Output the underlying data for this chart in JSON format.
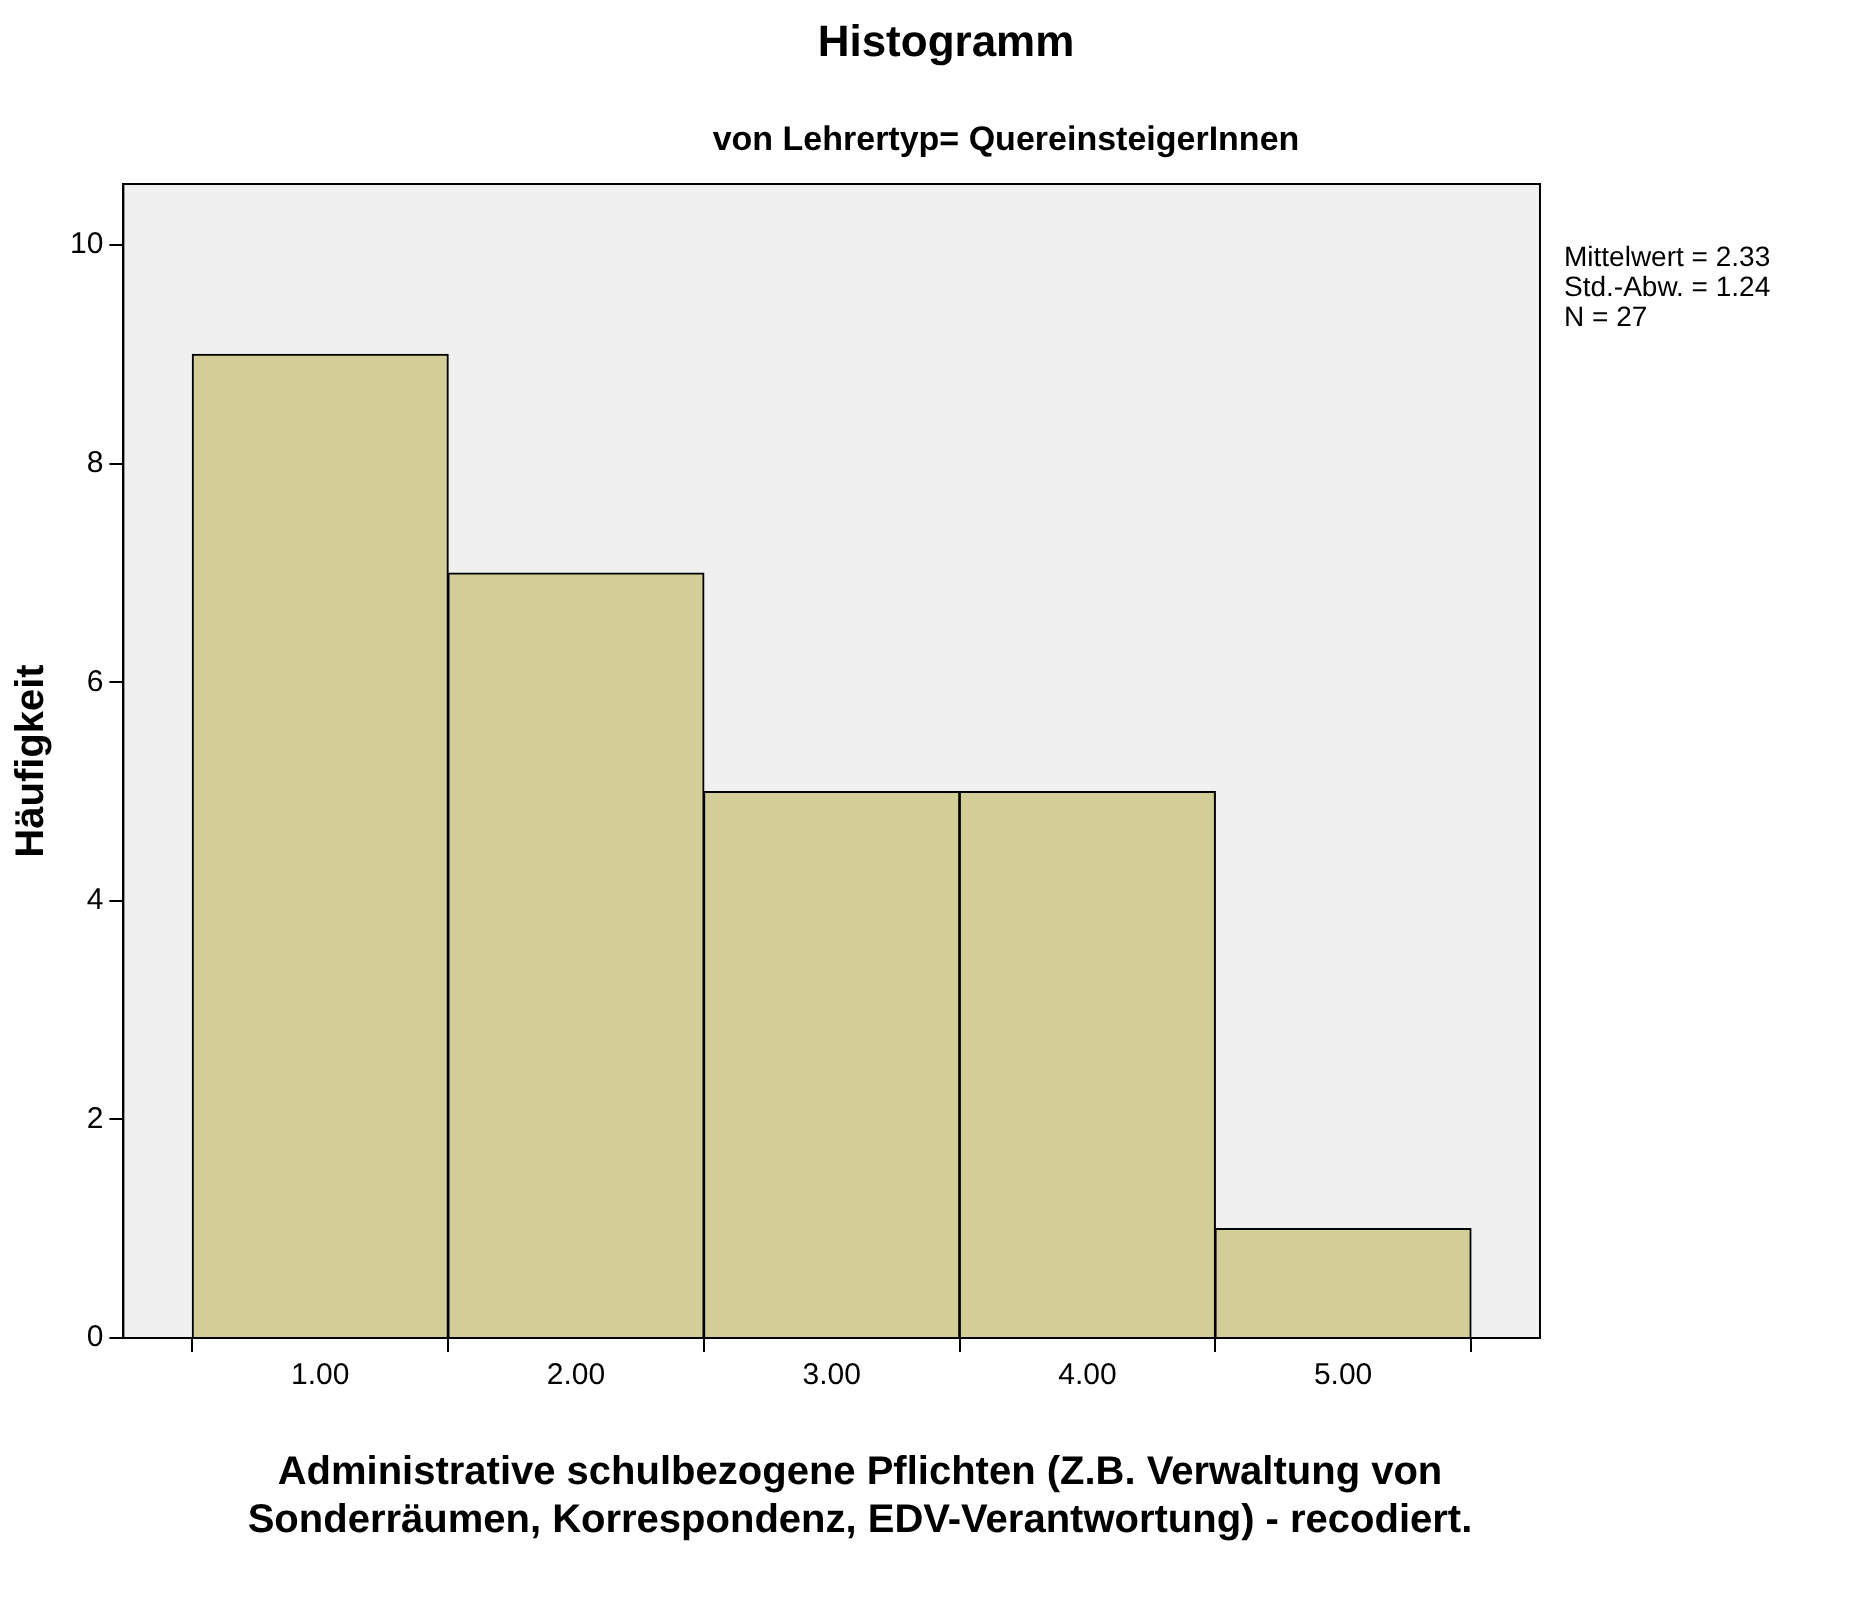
{
  "chart_data": {
    "type": "histogram",
    "title": "Histogramm",
    "subtitle": "von Lehrertyp= QuereinsteigerInnen",
    "xlabel": "Administrative schulbezogene Pflichten (Z.B. Verwaltung von Sonderräumen, Korrespondenz, EDV-Verantwortung) - recodiert.",
    "ylabel": "Häufigkeit",
    "bins": [
      0.5,
      1.5,
      2.5,
      3.5,
      4.5,
      5.5
    ],
    "values": [
      9,
      7,
      5,
      5,
      1
    ],
    "color": "#d3ce97",
    "xlim": [
      0.23,
      5.77
    ],
    "xticks": [
      {
        "value": 1,
        "label": "1.00"
      },
      {
        "value": 2,
        "label": "2.00"
      },
      {
        "value": 3,
        "label": "3.00"
      },
      {
        "value": 4,
        "label": "4.00"
      },
      {
        "value": 5,
        "label": "5.00"
      }
    ],
    "ylim": [
      0,
      10.56
    ],
    "yticks": [
      0,
      2,
      4,
      6,
      8,
      10
    ],
    "grid": false,
    "annotations": [
      "Mittelwert = 2.33",
      "Std.-Abw. = 1.24",
      "N = 27"
    ]
  }
}
